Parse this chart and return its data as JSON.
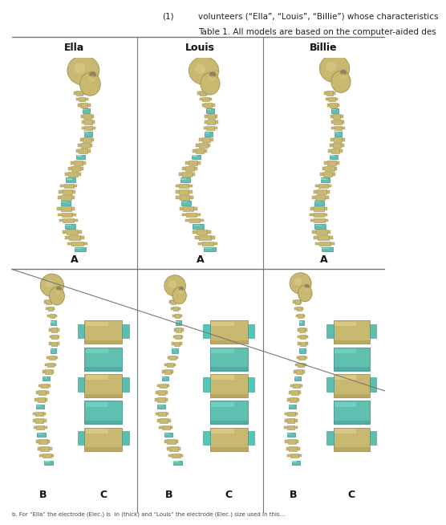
{
  "col_headers": [
    "Ella",
    "Louis",
    "Billie"
  ],
  "bg_color": "#ffffff",
  "header_fontsize": 9,
  "label_fontsize": 9,
  "title_fontsize": 7.5,
  "grid_color": "#777777",
  "bone_color": "#c8b870",
  "bone_dark": "#a09050",
  "disc_color": "#60c0b0",
  "disc_dark": "#409090",
  "skull_color": "#ccbb78",
  "text1": "(1)",
  "text2": "volunteers (“Ella”, “Louis”, “Billie”) whose characteristics",
  "text3": "Table 1. All models are based on the computer-aided des",
  "caption": "b. For “Ella” the electrode (Elec.) is  in (thick) and “Louis” the electrode (Elec.) size used in this..."
}
